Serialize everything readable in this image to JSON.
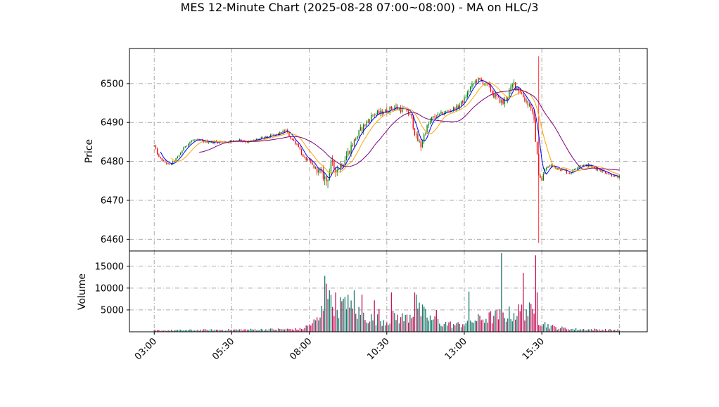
{
  "chart_data": {
    "type": "candlestick",
    "title": "MES 12-Minute Chart (2025-08-28 07:00~08:00) - MA on HLC/3",
    "price_panel": {
      "ylabel": "Price",
      "ylim": [
        6457,
        6509
      ],
      "yticks": [
        6460,
        6470,
        6480,
        6490,
        6500
      ],
      "grid": true
    },
    "volume_panel": {
      "ylabel": "Volume",
      "ylim": [
        0,
        18500
      ],
      "yticks": [
        5000,
        10000,
        15000
      ],
      "grid": true
    },
    "x_axis": {
      "range": [
        -16,
        318
      ],
      "ticks": [
        {
          "x": 0,
          "label": "03:00"
        },
        {
          "x": 50,
          "label": "05:30"
        },
        {
          "x": 100,
          "label": "08:00"
        },
        {
          "x": 150,
          "label": "10:30"
        },
        {
          "x": 200,
          "label": "13:00"
        },
        {
          "x": 250,
          "label": "15:30"
        },
        {
          "x": 300,
          "label": ""
        }
      ]
    },
    "colors": {
      "up": "#008000",
      "down": "#ff0000",
      "vol_up": "#1f7a6e",
      "vol_down": "#c2185b",
      "ma_fast": "#0000ff",
      "ma_mid": "#ffa500",
      "ma_slow": "#800080",
      "grid": "#aaaaaa"
    },
    "price_path": [
      [
        0,
        6484
      ],
      [
        3,
        6481
      ],
      [
        6,
        6480
      ],
      [
        10,
        6479
      ],
      [
        15,
        6481
      ],
      [
        20,
        6484
      ],
      [
        25,
        6485.5
      ],
      [
        35,
        6485
      ],
      [
        45,
        6485
      ],
      [
        55,
        6485.5
      ],
      [
        60,
        6485
      ],
      [
        70,
        6486
      ],
      [
        80,
        6487
      ],
      [
        85,
        6488
      ],
      [
        88,
        6486
      ],
      [
        93,
        6484
      ],
      [
        96,
        6481
      ],
      [
        100,
        6480
      ],
      [
        104,
        6478
      ],
      [
        108,
        6477
      ],
      [
        111,
        6475
      ],
      [
        114,
        6479
      ],
      [
        118,
        6478
      ],
      [
        122,
        6480
      ],
      [
        126,
        6483
      ],
      [
        130,
        6486
      ],
      [
        133,
        6488
      ],
      [
        137,
        6490
      ],
      [
        141,
        6492
      ],
      [
        146,
        6492.5
      ],
      [
        150,
        6493
      ],
      [
        154,
        6494
      ],
      [
        158,
        6493.5
      ],
      [
        163,
        6493
      ],
      [
        166,
        6491
      ],
      [
        169,
        6486
      ],
      [
        172,
        6484
      ],
      [
        175,
        6488
      ],
      [
        179,
        6491
      ],
      [
        184,
        6492
      ],
      [
        190,
        6493
      ],
      [
        196,
        6494
      ],
      [
        200,
        6496
      ],
      [
        204,
        6499
      ],
      [
        208,
        6501
      ],
      [
        212,
        6500.5
      ],
      [
        216,
        6499
      ],
      [
        219,
        6497
      ],
      [
        222,
        6496
      ],
      [
        225,
        6495
      ],
      [
        228,
        6497
      ],
      [
        232,
        6500
      ],
      [
        236,
        6498
      ],
      [
        239,
        6496
      ],
      [
        243,
        6494
      ],
      [
        245,
        6490
      ],
      [
        248,
        6477
      ],
      [
        250,
        6475
      ],
      [
        252,
        6478
      ],
      [
        256,
        6479
      ],
      [
        262,
        6478
      ],
      [
        268,
        6477
      ],
      [
        274,
        6479
      ],
      [
        280,
        6479
      ],
      [
        286,
        6478
      ],
      [
        292,
        6477
      ],
      [
        298,
        6476
      ],
      [
        300,
        6476
      ]
    ],
    "volume_profile": [
      [
        0,
        300
      ],
      [
        95,
        600
      ],
      [
        100,
        1500
      ],
      [
        107,
        3000
      ],
      [
        110,
        8000
      ],
      [
        113,
        9000
      ],
      [
        118,
        6000
      ],
      [
        125,
        5500
      ],
      [
        130,
        4500
      ],
      [
        140,
        3000
      ],
      [
        150,
        2500
      ],
      [
        155,
        3500
      ],
      [
        162,
        3000
      ],
      [
        168,
        5000
      ],
      [
        172,
        4500
      ],
      [
        178,
        3000
      ],
      [
        185,
        2000
      ],
      [
        195,
        1500
      ],
      [
        205,
        2500
      ],
      [
        212,
        3000
      ],
      [
        220,
        3500
      ],
      [
        230,
        4000
      ],
      [
        240,
        5000
      ],
      [
        245,
        4000
      ],
      [
        250,
        2000
      ],
      [
        258,
        1000
      ],
      [
        270,
        600
      ],
      [
        300,
        400
      ]
    ],
    "volume_spikes": [
      [
        110,
        12800
      ],
      [
        111,
        11000
      ],
      [
        113,
        9500
      ],
      [
        117,
        9000
      ],
      [
        121,
        7000
      ],
      [
        125,
        8500
      ],
      [
        129,
        9500
      ],
      [
        134,
        8500
      ],
      [
        142,
        7200
      ],
      [
        145,
        5200
      ],
      [
        153,
        9000
      ],
      [
        168,
        9000
      ],
      [
        169,
        8500
      ],
      [
        182,
        5000
      ],
      [
        203,
        9200
      ],
      [
        224,
        18000
      ],
      [
        238,
        13500
      ],
      [
        246,
        17500
      ],
      [
        247,
        9000
      ]
    ],
    "notes_spikes": [
      [
        248,
        6459,
        6507
      ]
    ]
  }
}
